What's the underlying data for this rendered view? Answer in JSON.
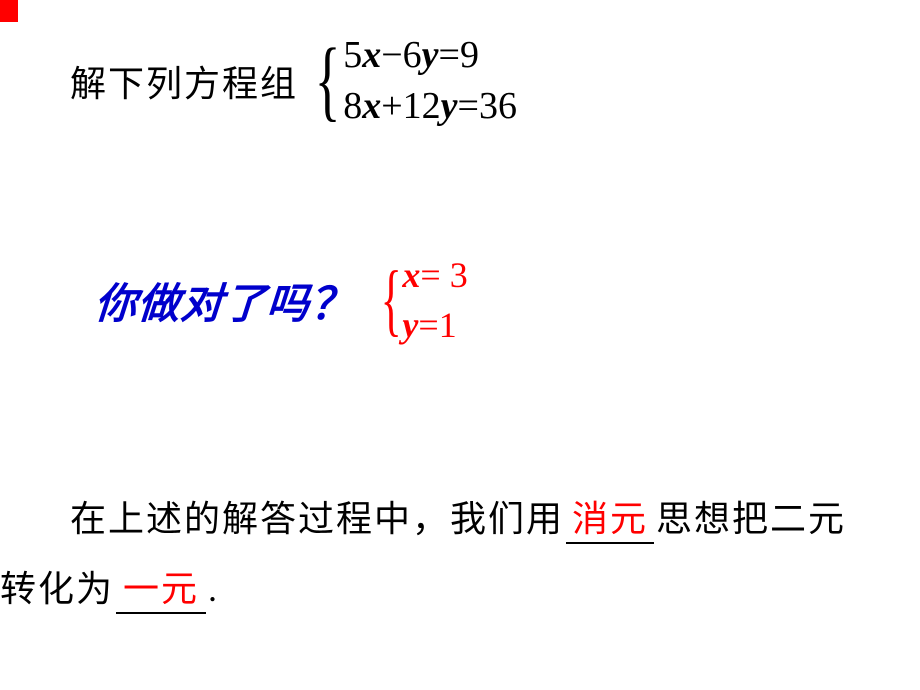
{
  "colors": {
    "black": "#000000",
    "red": "#ff0000",
    "blue": "#0000cc",
    "background": "#ffffff"
  },
  "fonts": {
    "body_cn": "SimSun",
    "hand_cn": "KaiTi",
    "math": "Times New Roman",
    "body_size_pt": 27,
    "math_size_pt": 28,
    "hand_size_pt": 32
  },
  "problem": {
    "lead": "解下列方程组",
    "system": {
      "eq1": {
        "a": "5",
        "x": "x",
        "op": "−",
        "b": "6",
        "y": "y",
        "eq": "=",
        "rhs": "9"
      },
      "eq2": {
        "a": "8",
        "x": "x",
        "op": "+",
        "b": "12",
        "y": "y",
        "eq": "=",
        "rhs": "36"
      }
    }
  },
  "check": {
    "question": "你做对了吗",
    "qmark": "？",
    "solution": {
      "line1": {
        "var": "x",
        "eq": "=",
        "val": "3"
      },
      "line2": {
        "var": "y",
        "eq": "=",
        "val": "1"
      }
    }
  },
  "summary": {
    "pre1": "在上述的解答过程中，我们用",
    "blank1": "消元",
    "post1": "思想把二元",
    "pre2": "转化为",
    "blank2": "一元",
    "post2": "."
  }
}
